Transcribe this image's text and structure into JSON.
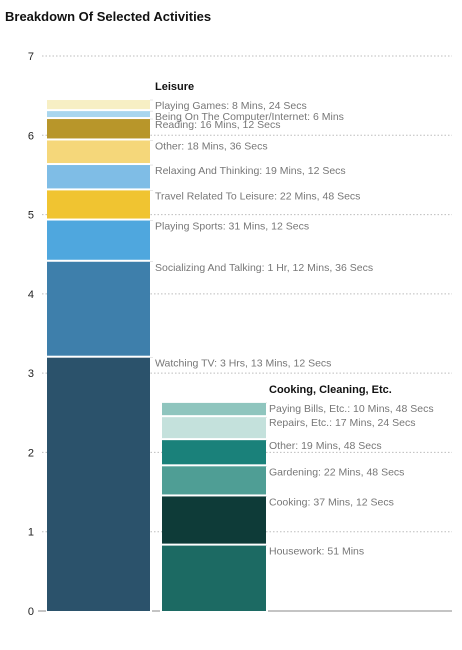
{
  "chart_data": {
    "type": "stacked_bar",
    "title": "Breakdown Of Selected Activities",
    "ylim": [
      0,
      7
    ],
    "yticks": [
      "0",
      "1",
      "2",
      "3",
      "4",
      "5",
      "6",
      "7"
    ],
    "grid": true,
    "bars": [
      {
        "name": "Leisure",
        "segments": [
          {
            "label": "Watching TV: 3 Hrs, 13 Mins, 12 Secs",
            "value": 3.22,
            "color": "#2b526b"
          },
          {
            "label": "Socializing And Talking: 1 Hr, 12 Mins, 36 Secs",
            "value": 1.21,
            "color": "#3e7fab"
          },
          {
            "label": "Playing Sports: 31 Mins, 12 Secs",
            "value": 0.52,
            "color": "#4fa7de"
          },
          {
            "label": "Travel Related To Leisure: 22 Mins, 48 Secs",
            "value": 0.38,
            "color": "#f0c431"
          },
          {
            "label": "Relaxing And Thinking: 19 Mins, 12 Secs",
            "value": 0.32,
            "color": "#7fbde6"
          },
          {
            "label": "Other: 18 Mins, 36 Secs",
            "value": 0.31,
            "color": "#f5d77a"
          },
          {
            "label": "Reading: 16 Mins, 12 Secs",
            "value": 0.27,
            "color": "#b8962a"
          },
          {
            "label": "Being On The Computer/Internet: 6 Mins",
            "value": 0.1,
            "color": "#a9d6ee"
          },
          {
            "label": "Playing Games: 8 Mins, 24 Secs",
            "value": 0.14,
            "color": "#f7efc4"
          }
        ]
      },
      {
        "name": "Cooking, Cleaning, Etc.",
        "segments": [
          {
            "label": "Housework: 51 Mins",
            "value": 0.85,
            "color": "#1c6a63"
          },
          {
            "label": "Cooking: 37 Mins, 12 Secs",
            "value": 0.62,
            "color": "#0e3b38"
          },
          {
            "label": "Gardening: 22 Mins, 48 Secs",
            "value": 0.38,
            "color": "#4f9e95"
          },
          {
            "label": "Other: 19 Mins, 48 Secs",
            "value": 0.33,
            "color": "#1a817a"
          },
          {
            "label": "Repairs, Etc.: 17 Mins, 24 Secs",
            "value": 0.29,
            "color": "#c4e1dc"
          },
          {
            "label": "Paying Bills, Etc.: 10 Mins, 48 Secs",
            "value": 0.18,
            "color": "#8fc5be"
          }
        ]
      }
    ]
  }
}
